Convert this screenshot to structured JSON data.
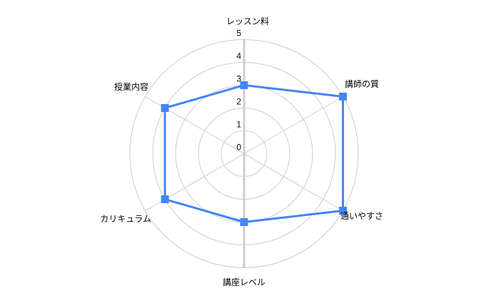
{
  "chart_data": {
    "type": "radar",
    "title": "",
    "categories": [
      "レッスン料",
      "講師の質",
      "通いやすさ",
      "講座レベル",
      "カリキュラム",
      "授業内容"
    ],
    "category_names_en": [
      "lesson-fee",
      "instructor-quality",
      "accessibility",
      "course-level",
      "curriculum",
      "class-content"
    ],
    "values": [
      3,
      5,
      5,
      3,
      4,
      4
    ],
    "ticks": [
      0,
      1,
      2,
      3,
      4,
      5
    ],
    "axis_min": 0,
    "axis_max": 5,
    "grid": true,
    "legend": "none",
    "marker_shape": "square",
    "series_color": "#4285f4",
    "grid_color": "#cccccc",
    "axis_line_color": "#cccccc",
    "label_color": "#000000",
    "background_color": "#ffffff"
  }
}
